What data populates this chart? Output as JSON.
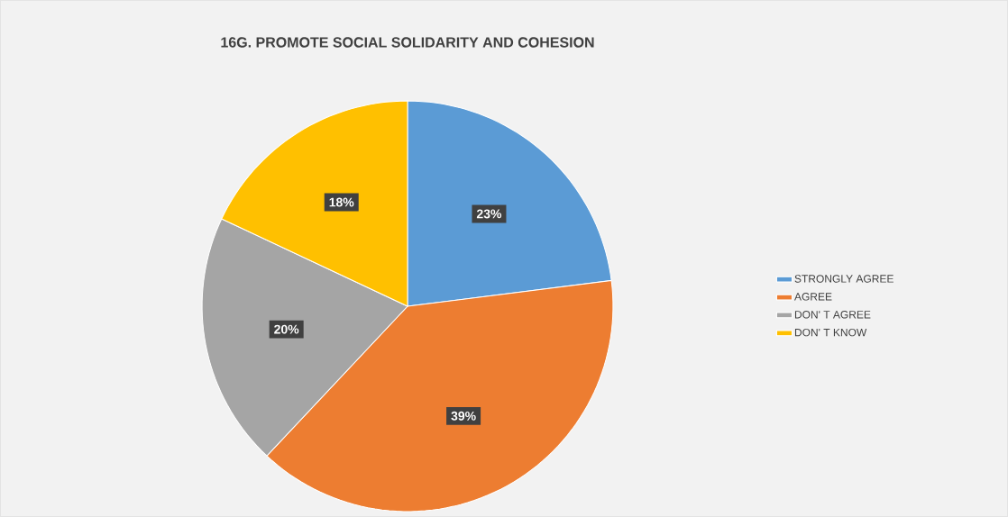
{
  "chart_data": {
    "type": "pie",
    "title": "16G. PROMOTE SOCIAL SOLIDARITY AND COHESION",
    "categories": [
      "STRONGLY AGREE",
      "AGREE",
      "DON' T AGREE",
      "DON' T KNOW"
    ],
    "values": [
      23,
      39,
      20,
      18
    ],
    "value_labels": [
      "23%",
      "39%",
      "20%",
      "18%"
    ],
    "colors": [
      "#5b9bd5",
      "#ed7d31",
      "#a5a5a5",
      "#ffc000"
    ],
    "legend": "right"
  }
}
